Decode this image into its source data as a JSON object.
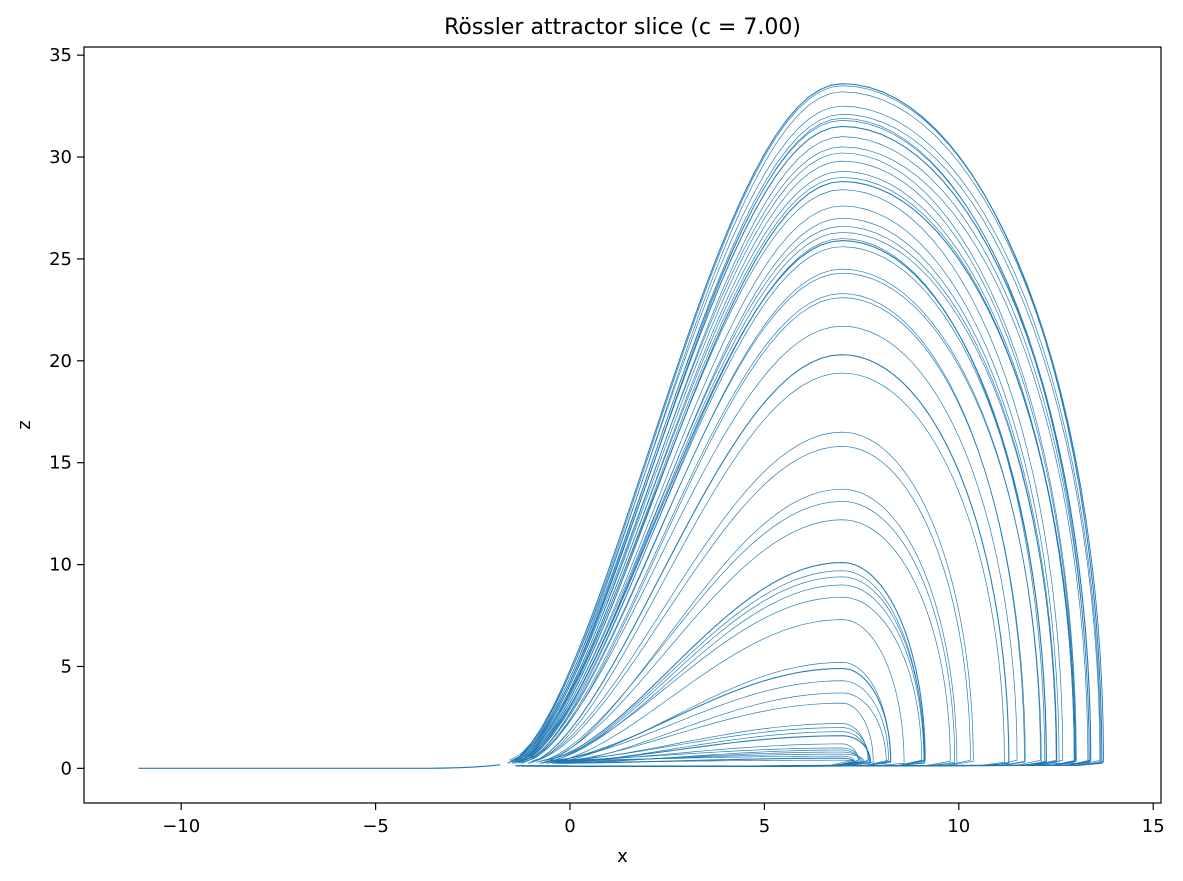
{
  "chart_data": {
    "type": "line",
    "title": "Rössler attractor slice (c = 7.00)",
    "xlabel": "x",
    "ylabel": "z",
    "xlim": [
      -12.5,
      15.2
    ],
    "ylim": [
      -1.7,
      35.4
    ],
    "x_ticks": [
      -10,
      -5,
      0,
      5,
      10,
      15
    ],
    "x_tick_labels": [
      "−10",
      "−5",
      "0",
      "5",
      "10",
      "15"
    ],
    "y_ticks": [
      0,
      5,
      10,
      15,
      20,
      25,
      30,
      35
    ],
    "y_tick_labels": [
      "0",
      "5",
      "10",
      "15",
      "20",
      "25",
      "30",
      "35"
    ],
    "grid": false,
    "legend": "none",
    "series_color": "#1f77b4",
    "start_point": {
      "x": -11.1,
      "y": 0.0
    },
    "lobe_peak_x": 7.0,
    "lobe_ramp_x": -1.6,
    "lobe_right_x": 13.8,
    "loop_peaks": [
      33.6,
      33.5,
      33.2,
      32.5,
      32.1,
      31.9,
      31.8,
      31.5,
      31.0,
      30.5,
      30.2,
      29.8,
      29.3,
      29.0,
      28.8,
      28.4,
      27.6,
      27.0,
      26.6,
      26.3,
      26.0,
      25.9,
      25.6,
      24.5,
      24.3,
      23.3,
      23.1,
      21.7,
      20.3,
      19.4,
      16.5,
      15.8,
      13.7,
      13.1,
      12.2,
      10.1,
      9.7,
      9.4,
      9.0,
      8.4,
      7.3,
      5.2,
      4.9,
      4.3,
      3.7,
      3.2,
      2.2,
      2.0,
      1.8,
      1.6,
      1.2,
      1.0,
      0.9,
      0.8,
      0.7,
      0.6,
      0.5,
      0.4
    ]
  }
}
